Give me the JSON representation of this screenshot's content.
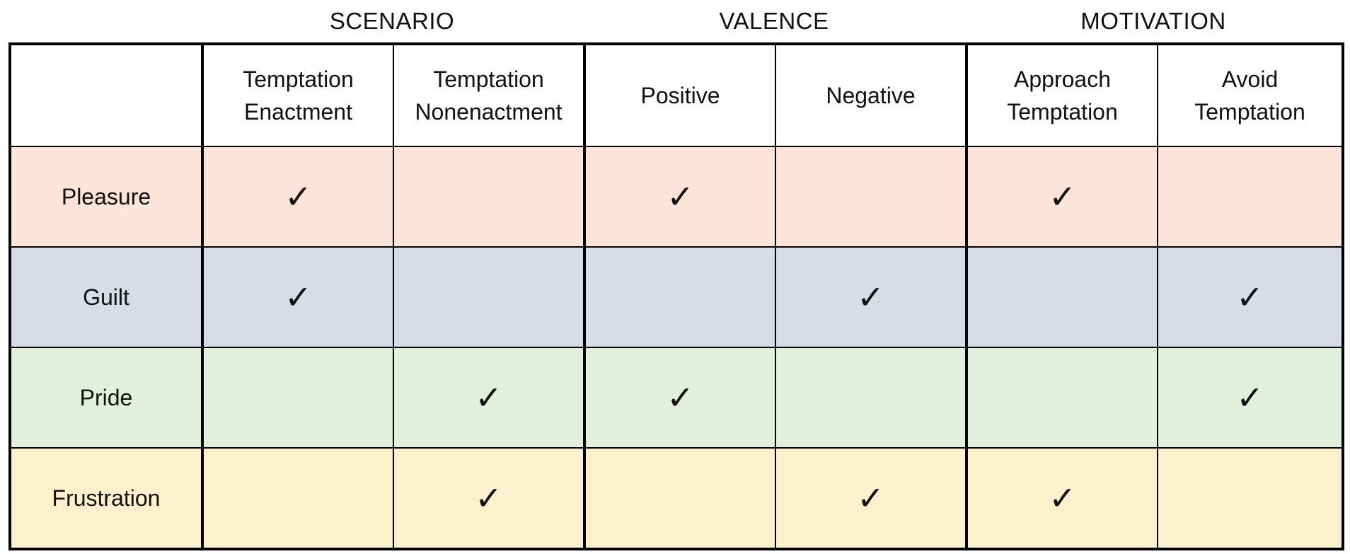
{
  "groups": [
    {
      "label": "SCENARIO",
      "span": 2
    },
    {
      "label": "VALENCE",
      "span": 2
    },
    {
      "label": "MOTIVATION",
      "span": 2
    }
  ],
  "columns": [
    {
      "line1": "Temptation",
      "line2": "Enactment"
    },
    {
      "line1": "Temptation",
      "line2": "Nonenactment"
    },
    {
      "line1": "Positive",
      "line2": ""
    },
    {
      "line1": "Negative",
      "line2": ""
    },
    {
      "line1": "Approach",
      "line2": "Temptation"
    },
    {
      "line1": "Avoid",
      "line2": "Temptation"
    }
  ],
  "check_symbol": "✓",
  "rows": [
    {
      "label": "Pleasure",
      "color": "#fde4d8",
      "checks": [
        true,
        false,
        true,
        false,
        true,
        false
      ]
    },
    {
      "label": "Guilt",
      "color": "#d8dce4",
      "checks": [
        true,
        false,
        false,
        true,
        false,
        true
      ]
    },
    {
      "label": "Pride",
      "color": "#e2efda",
      "checks": [
        false,
        true,
        true,
        false,
        false,
        true
      ]
    },
    {
      "label": "Frustration",
      "color": "#fdf0cd",
      "checks": [
        false,
        true,
        false,
        true,
        true,
        false
      ]
    }
  ]
}
